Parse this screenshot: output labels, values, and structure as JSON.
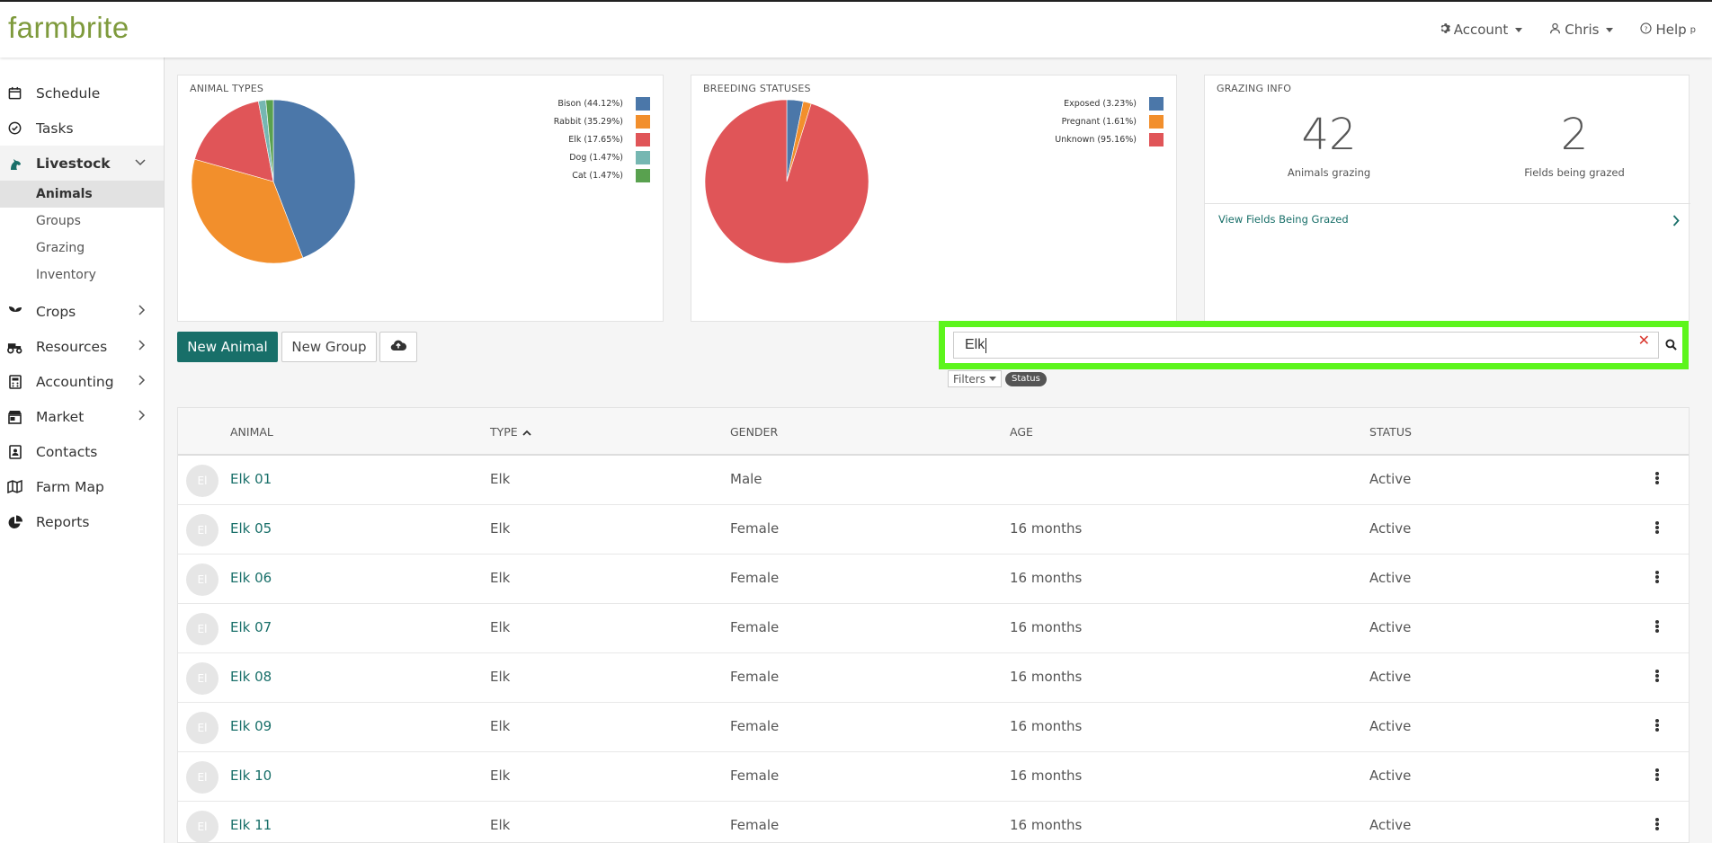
{
  "header": {
    "logo": "farmbrite",
    "account_label": "Account",
    "user_label": "Chris",
    "help_label": "Help",
    "help_suffix": "p"
  },
  "sidebar": {
    "items": [
      {
        "label": "Schedule",
        "icon": "calendar-icon"
      },
      {
        "label": "Tasks",
        "icon": "check-circle-icon"
      },
      {
        "label": "Livestock",
        "icon": "horse-icon",
        "expanded": true
      },
      {
        "label": "Crops",
        "icon": "seedling-icon"
      },
      {
        "label": "Resources",
        "icon": "tractor-icon"
      },
      {
        "label": "Accounting",
        "icon": "calculator-icon"
      },
      {
        "label": "Market",
        "icon": "store-icon"
      },
      {
        "label": "Contacts",
        "icon": "address-book-icon"
      },
      {
        "label": "Farm Map",
        "icon": "map-icon"
      },
      {
        "label": "Reports",
        "icon": "pie-chart-icon"
      }
    ],
    "livestock_sub": [
      "Animals",
      "Groups",
      "Grazing",
      "Inventory"
    ],
    "selected_sub": "Animals"
  },
  "animal_types_card": {
    "title": "ANIMAL TYPES"
  },
  "breeding_card": {
    "title": "BREEDING STATUSES"
  },
  "grazing_card": {
    "title": "GRAZING INFO",
    "animals_grazing": "42",
    "animals_grazing_label": "Animals grazing",
    "fields_grazed": "2",
    "fields_grazed_label": "Fields being grazed",
    "link_label": "View Fields Being Grazed"
  },
  "chart_data": [
    {
      "type": "pie",
      "title": "ANIMAL TYPES",
      "categories": [
        "Bison (44.12%)",
        "Rabbit (35.29%)",
        "Elk (17.65%)",
        "Dog (1.47%)",
        "Cat (1.47%)"
      ],
      "values": [
        44.12,
        35.29,
        17.65,
        1.47,
        1.47
      ],
      "colors": [
        "#4b77a9",
        "#f28f2c",
        "#e05558",
        "#76b7b2",
        "#59a14f"
      ],
      "legend": "top-right"
    },
    {
      "type": "pie",
      "title": "BREEDING STATUSES",
      "categories": [
        "Exposed (3.23%)",
        "Pregnant (1.61%)",
        "Unknown (95.16%)"
      ],
      "values": [
        3.23,
        1.61,
        95.16
      ],
      "colors": [
        "#4b77a9",
        "#f28f2c",
        "#e05558"
      ],
      "legend": "top-right"
    }
  ],
  "toolbar": {
    "new_animal": "New Animal",
    "new_group": "New Group",
    "upload_icon": "cloud-upload-icon"
  },
  "search": {
    "value": "Elk",
    "filters_label": "Filters",
    "status_badge": "Status"
  },
  "table": {
    "columns": [
      "ANIMAL",
      "TYPE",
      "GENDER",
      "AGE",
      "STATUS"
    ],
    "sorted_column": "TYPE",
    "rows": [
      {
        "initials": "El",
        "name": "Elk 01",
        "type": "Elk",
        "gender": "Male",
        "age": "",
        "status": "Active"
      },
      {
        "initials": "El",
        "name": "Elk 05",
        "type": "Elk",
        "gender": "Female",
        "age": "16 months",
        "status": "Active"
      },
      {
        "initials": "El",
        "name": "Elk 06",
        "type": "Elk",
        "gender": "Female",
        "age": "16 months",
        "status": "Active"
      },
      {
        "initials": "El",
        "name": "Elk 07",
        "type": "Elk",
        "gender": "Female",
        "age": "16 months",
        "status": "Active"
      },
      {
        "initials": "El",
        "name": "Elk 08",
        "type": "Elk",
        "gender": "Female",
        "age": "16 months",
        "status": "Active"
      },
      {
        "initials": "El",
        "name": "Elk 09",
        "type": "Elk",
        "gender": "Female",
        "age": "16 months",
        "status": "Active"
      },
      {
        "initials": "El",
        "name": "Elk 10",
        "type": "Elk",
        "gender": "Female",
        "age": "16 months",
        "status": "Active"
      },
      {
        "initials": "El",
        "name": "Elk 11",
        "type": "Elk",
        "gender": "Female",
        "age": "16 months",
        "status": "Active"
      }
    ]
  }
}
